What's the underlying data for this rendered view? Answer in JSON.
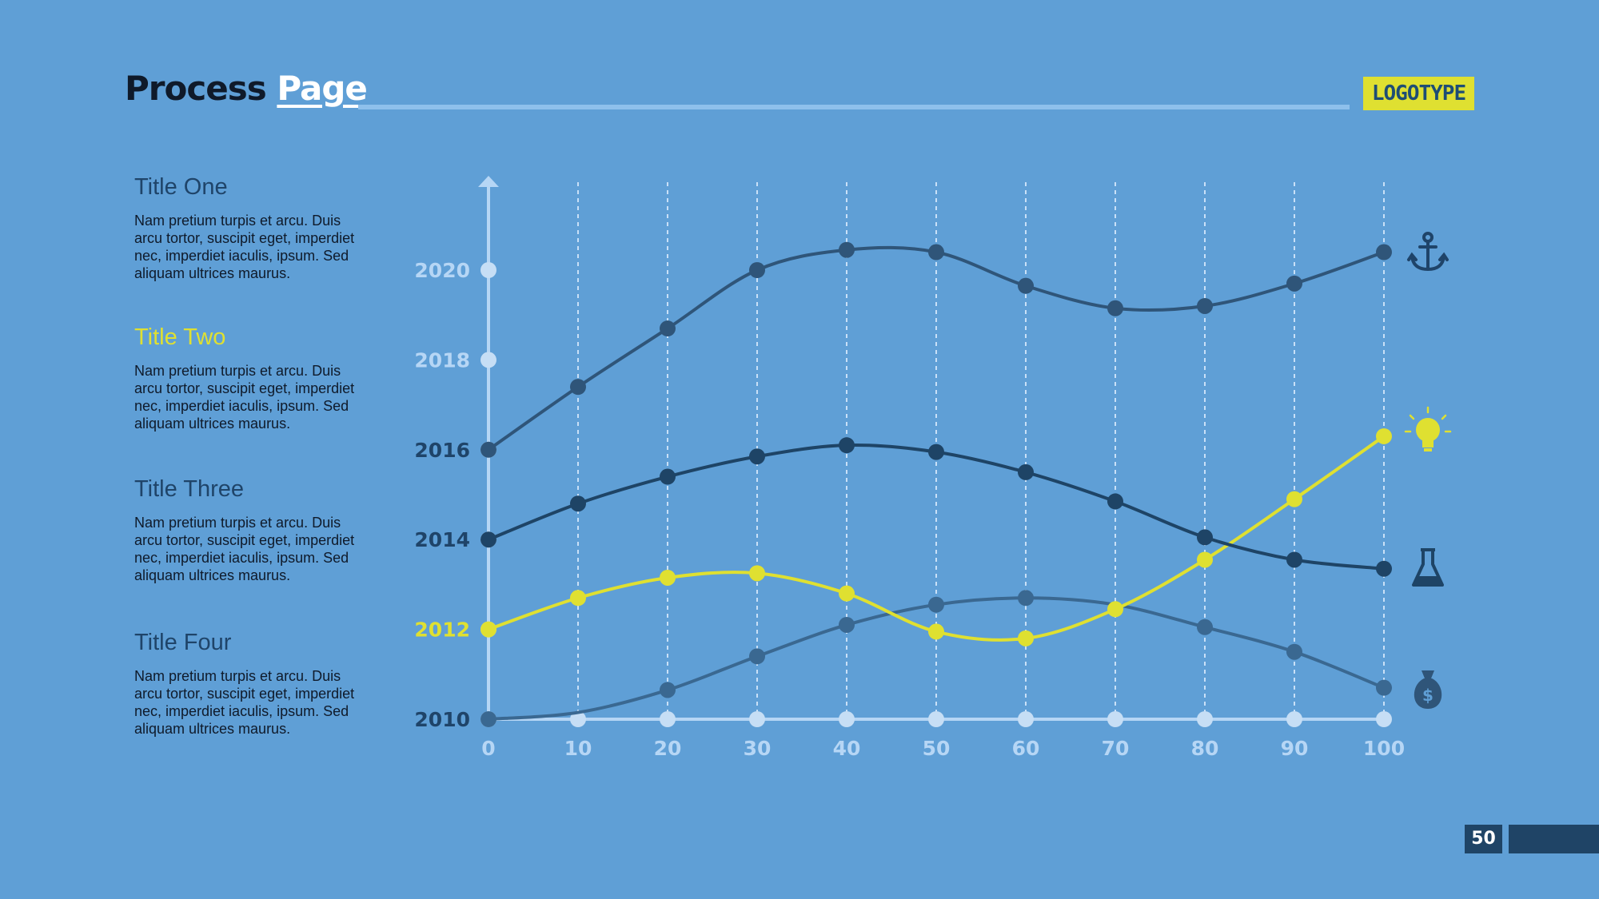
{
  "header": {
    "title_part1": "Process",
    "title_part2": "Page",
    "logo": "LOGOTYPE"
  },
  "sidebar": {
    "items": [
      {
        "title": "Title One",
        "body": "Nam pretium turpis et arcu. Duis arcu tortor, suscipit eget, imperdiet nec, imperdiet iaculis, ipsum. Sed aliquam ultrices maurus.",
        "color": "#1f4469"
      },
      {
        "title": "Title Two",
        "body": "Nam pretium turpis et arcu. Duis arcu tortor, suscipit eget, imperdiet nec, imperdiet iaculis, ipsum. Sed aliquam ultrices maurus.",
        "color": "#dfe031"
      },
      {
        "title": "Title Three",
        "body": "Nam pretium turpis et arcu. Duis arcu tortor, suscipit eget, imperdiet nec, imperdiet iaculis, ipsum. Sed aliquam ultrices maurus.",
        "color": "#1f4469"
      },
      {
        "title": "Title Four",
        "body": "Nam pretium turpis et arcu. Duis arcu tortor, suscipit eget, imperdiet nec, imperdiet iaculis, ipsum. Sed aliquam ultrices maurus.",
        "color": "#1f4469"
      }
    ]
  },
  "chart_data": {
    "type": "line",
    "title": "",
    "xlabel": "",
    "ylabel": "",
    "x": [
      0,
      10,
      20,
      30,
      40,
      50,
      60,
      70,
      80,
      90,
      100
    ],
    "xlim": [
      0,
      100
    ],
    "ylim": [
      2010,
      2020
    ],
    "y_ticks": [
      2010,
      2012,
      2014,
      2016,
      2018,
      2020
    ],
    "y_tick_colors": [
      "#1f4469",
      "#dfe031",
      "#1f4469",
      "#1f4469",
      "#b6d6f5",
      "#b6d6f5"
    ],
    "x_ticks": [
      0,
      10,
      20,
      30,
      40,
      50,
      60,
      70,
      80,
      90,
      100
    ],
    "grid": "vertical dashed",
    "series": [
      {
        "values": [
          2016.0,
          2017.4,
          2018.7,
          2020.0,
          2020.45,
          2020.4,
          2019.65,
          2019.15,
          2019.2,
          2019.7,
          2020.4
        ],
        "color": "#2f5579",
        "icon": "anchor-icon"
      },
      {
        "values": [
          2014.0,
          2014.8,
          2015.4,
          2015.85,
          2016.1,
          2015.95,
          2015.5,
          2014.85,
          2014.05,
          2013.55,
          2013.35
        ],
        "color": "#1e4466",
        "icon": "flask-icon"
      },
      {
        "values": [
          2012.0,
          2012.7,
          2013.15,
          2013.25,
          2012.8,
          2011.95,
          2011.8,
          2012.45,
          2013.55,
          2014.9,
          2016.3
        ],
        "color": "#dfe031",
        "icon": "lightbulb-icon"
      },
      {
        "values": [
          2010.0,
          null,
          2010.65,
          2011.4,
          2012.1,
          2012.55,
          2012.7,
          null,
          2012.05,
          2011.5,
          2010.7
        ],
        "color": "#3a6891",
        "icon": "money-bag-icon"
      }
    ],
    "axis_color": "#b6d6f5"
  },
  "page": {
    "number": "50"
  }
}
